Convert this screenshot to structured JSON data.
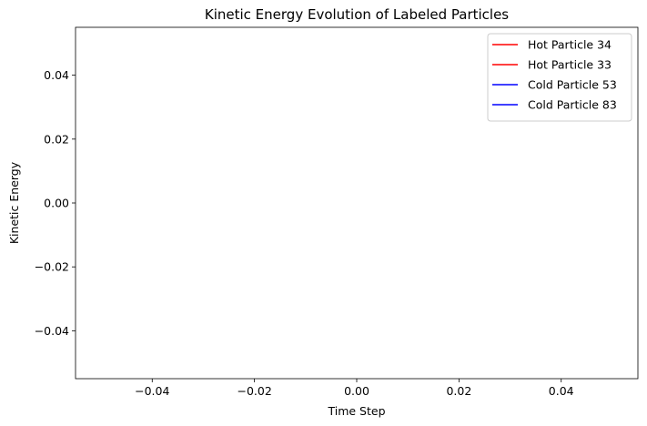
{
  "chart_data": {
    "type": "line",
    "title": "Kinetic Energy Evolution of Labeled Particles",
    "xlabel": "Time Step",
    "ylabel": "Kinetic Energy",
    "xlim": [
      -0.055,
      0.055
    ],
    "ylim": [
      -0.055,
      0.055
    ],
    "x_ticks": [
      -0.04,
      -0.02,
      0.0,
      0.02,
      0.04
    ],
    "x_tick_labels": [
      "−0.04",
      "−0.02",
      "0.00",
      "0.02",
      "0.04"
    ],
    "y_ticks": [
      -0.04,
      -0.02,
      0.0,
      0.02,
      0.04
    ],
    "y_tick_labels": [
      "−0.04",
      "−0.02",
      "0.00",
      "0.02",
      "0.04"
    ],
    "grid": false,
    "legend_position": "top-right",
    "series": [
      {
        "name": "Hot Particle 34",
        "color": "#ff0000",
        "x": [],
        "y": []
      },
      {
        "name": "Hot Particle 33",
        "color": "#ff0000",
        "x": [],
        "y": []
      },
      {
        "name": "Cold Particle 53",
        "color": "#0000ff",
        "x": [],
        "y": []
      },
      {
        "name": "Cold Particle 83",
        "color": "#0000ff",
        "x": [],
        "y": []
      }
    ]
  }
}
